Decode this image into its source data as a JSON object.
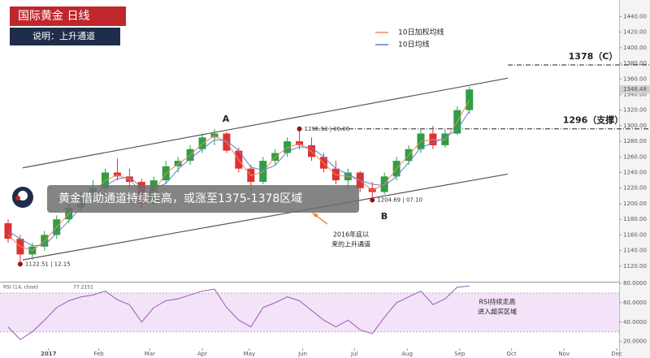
{
  "chart_data": [
    {
      "type": "candlestick",
      "title": "国际黄金 日线",
      "subtitle": "说明：上升通道",
      "callout": "黄金借助通道持续走高，或涨至1375-1378区域",
      "open": [
        1175,
        1155,
        1135,
        1145,
        1160,
        1180,
        1195,
        1210,
        1220,
        1240,
        1235,
        1228,
        1200,
        1230,
        1248,
        1255,
        1270,
        1285,
        1290,
        1268,
        1245,
        1228,
        1255,
        1265,
        1280,
        1275,
        1260,
        1245,
        1230,
        1240,
        1220,
        1215,
        1235,
        1255,
        1270,
        1290,
        1275,
        1290,
        1320
      ],
      "high": [
        1180,
        1160,
        1150,
        1165,
        1185,
        1200,
        1215,
        1230,
        1245,
        1258,
        1245,
        1232,
        1235,
        1255,
        1260,
        1275,
        1290,
        1296,
        1292,
        1272,
        1250,
        1260,
        1270,
        1285,
        1295.93,
        1285,
        1265,
        1255,
        1245,
        1242,
        1228,
        1240,
        1260,
        1275,
        1295,
        1300,
        1295,
        1325,
        1350
      ],
      "low": [
        1150,
        1122.51,
        1128,
        1140,
        1155,
        1175,
        1190,
        1205,
        1215,
        1230,
        1220,
        1195,
        1198,
        1225,
        1240,
        1250,
        1265,
        1275,
        1265,
        1240,
        1215,
        1225,
        1250,
        1260,
        1270,
        1255,
        1240,
        1225,
        1220,
        1215,
        1204.69,
        1212,
        1230,
        1250,
        1265,
        1270,
        1272,
        1288,
        1315
      ],
      "close": [
        1155,
        1135,
        1145,
        1160,
        1180,
        1195,
        1210,
        1220,
        1240,
        1235,
        1228,
        1200,
        1230,
        1248,
        1255,
        1270,
        1285,
        1290,
        1268,
        1245,
        1228,
        1255,
        1265,
        1280,
        1275,
        1260,
        1245,
        1230,
        1240,
        1220,
        1215,
        1235,
        1255,
        1270,
        1290,
        1275,
        1290,
        1320,
        1346.48
      ],
      "up_color": "#2f9e44",
      "down_color": "#e03131",
      "series": [
        {
          "name": "10日加权均线",
          "color": "#f08a5d",
          "values": [
            1160,
            1145,
            1140,
            1152,
            1170,
            1187,
            1202,
            1215,
            1230,
            1237,
            1231,
            1214,
            1215,
            1239,
            1251,
            1262,
            1277,
            1287,
            1279,
            1256,
            1236,
            1241,
            1260,
            1272,
            1277,
            1267,
            1252,
            1237,
            1235,
            1230,
            1217,
            1225,
            1245,
            1262,
            1280,
            1282,
            1282,
            1305,
            1333
          ]
        },
        {
          "name": "10日均线",
          "color": "#5b7fd6",
          "values": [
            1165,
            1155,
            1146,
            1147,
            1162,
            1178,
            1195,
            1208,
            1223,
            1232,
            1234,
            1221,
            1219,
            1226,
            1244,
            1258,
            1270,
            1282,
            1281,
            1268,
            1247,
            1243,
            1249,
            1267,
            1273,
            1272,
            1260,
            1245,
            1238,
            1230,
            1225,
            1223,
            1235,
            1253,
            1272,
            1278,
            1285,
            1295,
            1319
          ]
        }
      ],
      "xlim": [
        -0.667,
        50.333
      ],
      "ylim": [
        1100,
        1455
      ],
      "yticks": [
        {
          "value": 1120,
          "label": "1120.00"
        },
        {
          "value": 1140,
          "label": "1140.00"
        },
        {
          "value": 1160,
          "label": "1160.00"
        },
        {
          "value": 1180,
          "label": "1180.00"
        },
        {
          "value": 1200,
          "label": "1200.00"
        },
        {
          "value": 1220,
          "label": "1220.00"
        },
        {
          "value": 1240,
          "label": "1240.00"
        },
        {
          "value": 1260,
          "label": "1260.00"
        },
        {
          "value": 1280,
          "label": "1280.00"
        },
        {
          "value": 1300,
          "label": "1300.00"
        },
        {
          "value": 1320,
          "label": "1320.00"
        },
        {
          "value": 1340,
          "label": "1340.00"
        },
        {
          "value": 1360,
          "label": "1360.00"
        },
        {
          "value": 1380,
          "label": "1380.00"
        },
        {
          "value": 1400,
          "label": "1400.00"
        },
        {
          "value": 1420,
          "label": "1420.00"
        },
        {
          "value": 1440,
          "label": "1440.00"
        }
      ],
      "channel": {
        "upper": [
          1246,
          1361
        ],
        "lower": [
          1128,
          1238
        ]
      },
      "levels": [
        {
          "value": 1378,
          "label": "1378（C）"
        },
        {
          "value": 1296,
          "label": "1296（支撑）"
        }
      ],
      "annotations": [
        "1122.51 | 12.15",
        "1295.93 | 06.06",
        "1204.69 | 07.10"
      ],
      "points": [
        "A",
        "B"
      ],
      "channel_note": [
        "2016年底以",
        "来的上升通道"
      ]
    },
    {
      "type": "line",
      "title": "RSI (14, close)",
      "color": "#9b59b6",
      "values": [
        35,
        22,
        30,
        42,
        55,
        62,
        66,
        68,
        72,
        63,
        58,
        40,
        55,
        62,
        64,
        68,
        72,
        74,
        55,
        42,
        35,
        55,
        60,
        66,
        62,
        52,
        42,
        35,
        42,
        32,
        28,
        45,
        60,
        66,
        72,
        58,
        64,
        76,
        77.2151
      ],
      "band": [
        30,
        70
      ],
      "xlim": [
        -0.667,
        50.333
      ],
      "ylim": [
        13,
        80
      ],
      "yticks": [
        {
          "value": 20,
          "label": "20.0000"
        },
        {
          "value": 40,
          "label": "40.0000"
        },
        {
          "value": 60,
          "label": "60.0000"
        },
        {
          "value": 80,
          "label": "80.0000"
        }
      ],
      "xticks": [
        {
          "value": 3.33,
          "label": "2017"
        },
        {
          "value": 7.47,
          "label": "Feb"
        },
        {
          "value": 11.67,
          "label": "Mar"
        },
        {
          "value": 16,
          "label": "Apr"
        },
        {
          "value": 19.87,
          "label": "May"
        },
        {
          "value": 24.27,
          "label": "Jun"
        },
        {
          "value": 28.53,
          "label": "Jul"
        },
        {
          "value": 32.87,
          "label": "Aug"
        },
        {
          "value": 37.2,
          "label": "Sep"
        },
        {
          "value": 41.47,
          "label": "Oct"
        },
        {
          "value": 45.8,
          "label": "Nov"
        },
        {
          "value": 50.13,
          "label": "Dec"
        }
      ],
      "annotation": [
        "RSI持续走高",
        "进入超买区域"
      ]
    }
  ]
}
